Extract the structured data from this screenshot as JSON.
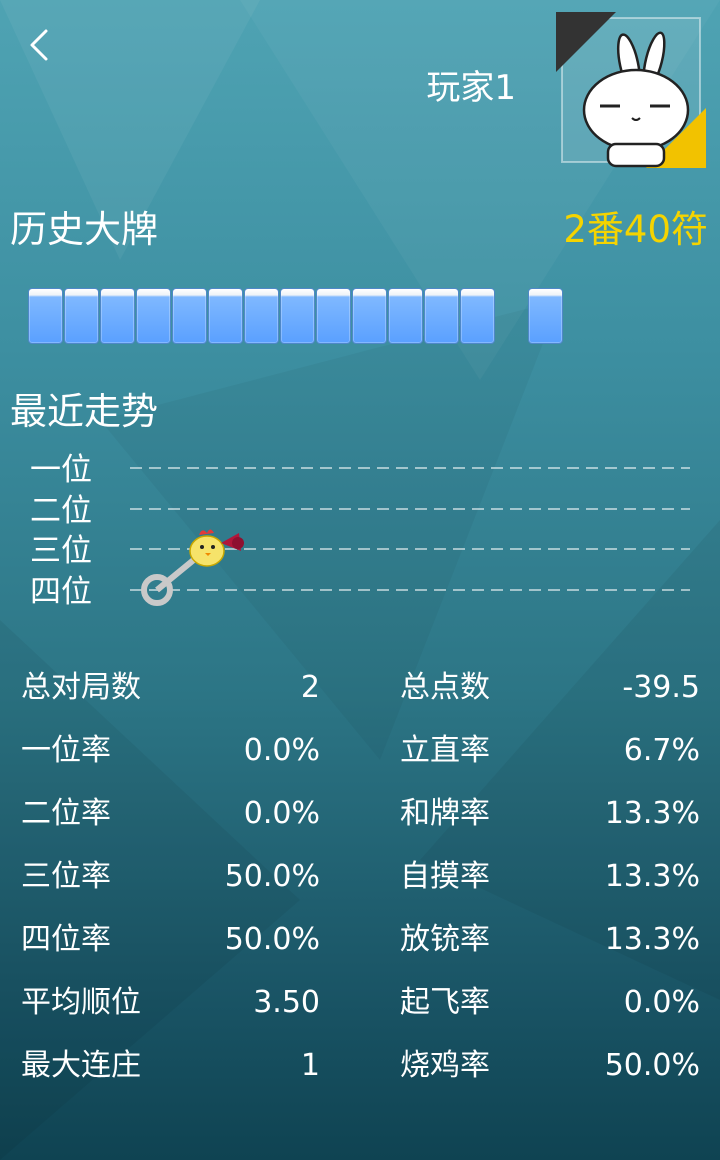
{
  "header": {
    "player_name": "玩家1",
    "avatar_icon": "bunny-avatar-icon"
  },
  "big_hand": {
    "title": "历史大牌",
    "fan_fu": "2番40符",
    "fan_color": "#f5d400",
    "tile_count": 13,
    "winning_tile_count": 1,
    "tile_color": "#5aa0ff"
  },
  "trend": {
    "title": "最近走势",
    "ranks": [
      "一位",
      "二位",
      "三位",
      "四位"
    ],
    "recent_placements": [
      4,
      3
    ],
    "marker_icon": "chick-megaphone-icon"
  },
  "stats": {
    "left": [
      {
        "label": "总对局数",
        "value": "2"
      },
      {
        "label": "一位率",
        "value": "0.0%"
      },
      {
        "label": "二位率",
        "value": "0.0%"
      },
      {
        "label": "三位率",
        "value": "50.0%"
      },
      {
        "label": "四位率",
        "value": "50.0%"
      },
      {
        "label": "平均顺位",
        "value": "3.50"
      },
      {
        "label": "最大连庄",
        "value": "1"
      }
    ],
    "right": [
      {
        "label": "总点数",
        "value": "-39.5"
      },
      {
        "label": "立直率",
        "value": "6.7%"
      },
      {
        "label": "和牌率",
        "value": "13.3%"
      },
      {
        "label": "自摸率",
        "value": "13.3%"
      },
      {
        "label": "放铳率",
        "value": "13.3%"
      },
      {
        "label": "起飞率",
        "value": "0.0%"
      },
      {
        "label": "烧鸡率",
        "value": "50.0%"
      }
    ]
  }
}
